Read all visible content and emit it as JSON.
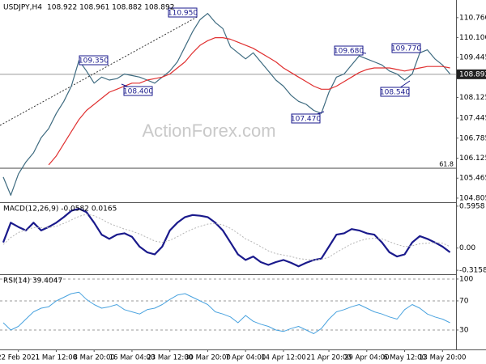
{
  "chart_data": [
    {
      "type": "line",
      "title": "USDJPY,H4",
      "quote": "108.922 108.961 108.882 108.892",
      "ylim": [
        104.67,
        111.29
      ],
      "yticks": [
        {
          "value": 110.76,
          "label": "110.760"
        },
        {
          "value": 110.1,
          "label": "110.100"
        },
        109.445,
        108.125,
        107.445,
        106.785,
        106.125,
        105.465,
        104.805
      ],
      "grid": false,
      "series": [
        {
          "color": "#3e6b80",
          "width": 1.2,
          "values": [
            105.5,
            104.9,
            105.6,
            106.0,
            106.3,
            106.8,
            107.1,
            107.6,
            108.0,
            108.5,
            109.35,
            109.0,
            108.6,
            108.8,
            108.7,
            108.75,
            108.9,
            108.85,
            108.8,
            108.7,
            108.6,
            108.8,
            109.0,
            109.3,
            109.8,
            110.3,
            110.7,
            110.9,
            110.6,
            110.4,
            109.8,
            109.6,
            109.4,
            109.6,
            109.3,
            109.0,
            108.7,
            108.5,
            108.2,
            108.0,
            107.9,
            107.7,
            107.6,
            108.3,
            108.8,
            108.9,
            109.2,
            109.5,
            109.4,
            109.3,
            109.2,
            109.0,
            108.9,
            108.7,
            108.9,
            109.6,
            109.7,
            109.4,
            109.2,
            108.9
          ]
        },
        {
          "color": "#e03030",
          "width": 1.2,
          "values": [
            null,
            null,
            null,
            null,
            null,
            null,
            105.9,
            106.2,
            106.6,
            107.0,
            107.4,
            107.7,
            107.9,
            108.1,
            108.3,
            108.4,
            108.5,
            108.6,
            108.6,
            108.7,
            108.75,
            108.8,
            108.9,
            109.1,
            109.3,
            109.6,
            109.85,
            110.0,
            110.1,
            110.1,
            110.05,
            109.95,
            109.85,
            109.75,
            109.6,
            109.45,
            109.3,
            109.1,
            108.95,
            108.8,
            108.65,
            108.5,
            108.4,
            108.4,
            108.5,
            108.65,
            108.8,
            108.95,
            109.05,
            109.1,
            109.1,
            109.1,
            109.05,
            109.0,
            109.05,
            109.1,
            109.15,
            109.15,
            109.15,
            109.1
          ]
        }
      ],
      "current_price": 108.892,
      "fib_level": {
        "value": 105.79,
        "label": "61.8"
      },
      "annotations": [
        "110.950",
        "109.350",
        "108.400",
        "107.470",
        "109.680",
        "109.770",
        "108.540"
      ],
      "watermark": "ActionForex.com"
    },
    {
      "type": "line",
      "title": "MACD(12,26,9) -0.0582 0.0165",
      "ylim": [
        -0.372,
        0.64
      ],
      "yticks": [
        0.5958,
        {
          "value": 0,
          "label": "0.00"
        },
        -0.3158
      ],
      "grid": false,
      "series": [
        {
          "color": "#1a1a8c",
          "width": 2.2,
          "values": [
            0.08,
            0.36,
            0.3,
            0.25,
            0.36,
            0.25,
            0.3,
            0.36,
            0.44,
            0.53,
            0.56,
            0.51,
            0.36,
            0.19,
            0.13,
            0.19,
            0.21,
            0.16,
            0.02,
            -0.06,
            -0.09,
            0.02,
            0.25,
            0.36,
            0.44,
            0.47,
            0.46,
            0.44,
            0.36,
            0.25,
            0.08,
            -0.09,
            -0.17,
            -0.12,
            -0.2,
            -0.24,
            -0.2,
            -0.17,
            -0.21,
            -0.26,
            -0.21,
            -0.17,
            -0.15,
            0.02,
            0.19,
            0.21,
            0.27,
            0.25,
            0.21,
            0.19,
            0.08,
            -0.06,
            -0.12,
            -0.09,
            0.08,
            0.17,
            0.13,
            0.08,
            0.02,
            -0.06
          ]
        },
        {
          "color": "#b5b5b5",
          "width": 1,
          "style": "dotted",
          "values": [
            0.05,
            0.15,
            0.22,
            0.26,
            0.29,
            0.29,
            0.29,
            0.31,
            0.35,
            0.4,
            0.45,
            0.48,
            0.46,
            0.41,
            0.35,
            0.31,
            0.27,
            0.24,
            0.2,
            0.15,
            0.1,
            0.08,
            0.11,
            0.16,
            0.22,
            0.27,
            0.31,
            0.34,
            0.35,
            0.33,
            0.28,
            0.21,
            0.13,
            0.08,
            0.02,
            -0.04,
            -0.08,
            -0.1,
            -0.12,
            -0.15,
            -0.16,
            -0.17,
            -0.16,
            -0.13,
            -0.06,
            0.0,
            0.06,
            0.1,
            0.13,
            0.14,
            0.13,
            0.09,
            0.05,
            0.02,
            0.03,
            0.06,
            0.07,
            0.08,
            0.07,
            0.02
          ]
        }
      ]
    },
    {
      "type": "line",
      "title": "RSI(14) 39.4047",
      "ylim": [
        3.3,
        105.5
      ],
      "yticks": [
        100,
        70,
        30
      ],
      "grid": true,
      "categories": [
        null,
        null,
        "22 Feb 2021",
        null,
        null,
        null,
        null,
        "1 Mar 12:00",
        null,
        null,
        null,
        null,
        "8 Mar 20:00",
        null,
        null,
        null,
        null,
        "16 Mar 04:00",
        null,
        null,
        null,
        null,
        "23 Mar 12:00",
        null,
        null,
        null,
        null,
        "30 Mar 20:00",
        null,
        null,
        null,
        null,
        "7 Apr 04:00",
        null,
        null,
        null,
        null,
        "14 Apr 12:00",
        null,
        null,
        null,
        null,
        null,
        "21 Apr 20:00",
        null,
        null,
        null,
        null,
        "29 Apr 04:00",
        null,
        null,
        null,
        null,
        "6 May 12:00",
        null,
        null,
        null,
        null,
        "13 May 20:00",
        null
      ],
      "series": [
        {
          "color": "#4aa3df",
          "width": 1,
          "values": [
            40,
            30,
            35,
            45,
            55,
            60,
            62,
            70,
            75,
            80,
            82,
            72,
            65,
            60,
            62,
            65,
            58,
            55,
            52,
            58,
            60,
            65,
            72,
            78,
            80,
            75,
            70,
            65,
            55,
            52,
            48,
            40,
            50,
            42,
            38,
            35,
            30,
            28,
            32,
            35,
            30,
            25,
            32,
            45,
            55,
            58,
            62,
            65,
            60,
            55,
            52,
            48,
            45,
            58,
            65,
            60,
            52,
            48,
            45,
            40
          ]
        }
      ]
    }
  ]
}
